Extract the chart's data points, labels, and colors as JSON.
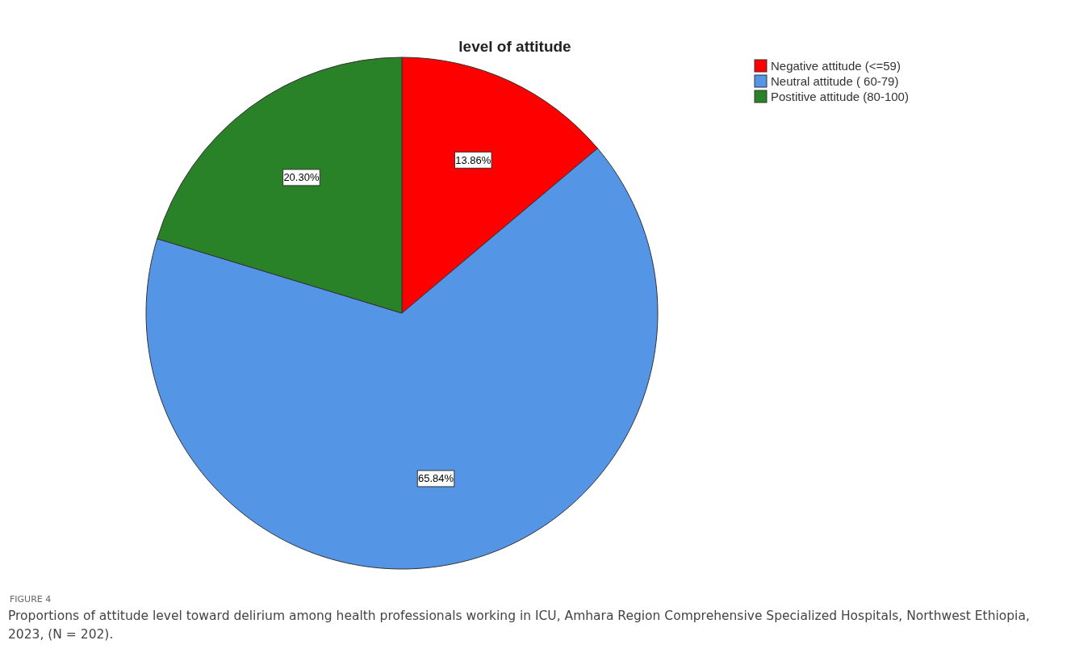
{
  "chart_data": {
    "type": "pie",
    "title": "level of attitude",
    "categories": [
      "Negative attitude (<=59)",
      "Neutral attitude ( 60-79)",
      "Postitive attitude (80-100)"
    ],
    "values": [
      13.86,
      65.84,
      20.3
    ],
    "value_labels": [
      "13.86%",
      "65.84%",
      "20.30%"
    ],
    "colors": [
      "#ff0000",
      "#5595e5",
      "#2a8228"
    ],
    "legend": "top right",
    "annotations": [
      "FIGURE 4",
      "Proportions of attitude level toward delirium among health professionals working in ICU, Amhara Region Comprehensive Specialized Hospitals, Northwest Ethiopia, 2023, (N = 202)."
    ]
  }
}
